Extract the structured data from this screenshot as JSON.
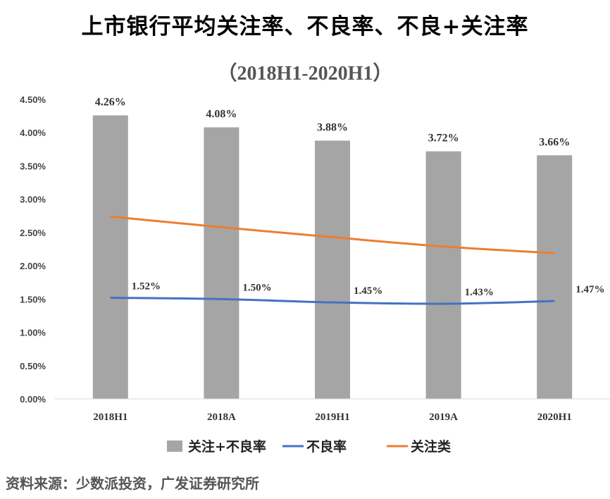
{
  "header": {
    "title": "上市银行平均关注率、不良率、不良+关注率",
    "subtitle": "（2018H1-2020H1）"
  },
  "footer": {
    "source": "资料来源：少数派投资，广发证券研究所"
  },
  "chart_data": {
    "type": "bar+line",
    "categories": [
      "2018H1",
      "2018A",
      "2019H1",
      "2019A",
      "2020H1"
    ],
    "ylim": [
      0,
      4.5
    ],
    "yticks": [
      "0.00%",
      "0.50%",
      "1.00%",
      "1.50%",
      "2.00%",
      "2.50%",
      "3.00%",
      "3.50%",
      "4.00%",
      "4.50%"
    ],
    "grid": false,
    "legend_position": "bottom",
    "series": [
      {
        "name": "关注+不良率",
        "type": "bar",
        "color": "#a5a5a5",
        "values": [
          4.26,
          4.08,
          3.88,
          3.72,
          3.66
        ],
        "labels": [
          "4.26%",
          "4.08%",
          "3.88%",
          "3.72%",
          "3.66%"
        ]
      },
      {
        "name": "不良率",
        "type": "line",
        "color": "#4472c4",
        "values": [
          1.52,
          1.5,
          1.45,
          1.43,
          1.47
        ],
        "labels": [
          "1.52%",
          "1.50%",
          "1.45%",
          "1.43%",
          "1.47%"
        ]
      },
      {
        "name": "关注类",
        "type": "line",
        "color": "#ed7d31",
        "values": [
          2.74,
          2.58,
          2.43,
          2.29,
          2.19
        ]
      }
    ]
  }
}
